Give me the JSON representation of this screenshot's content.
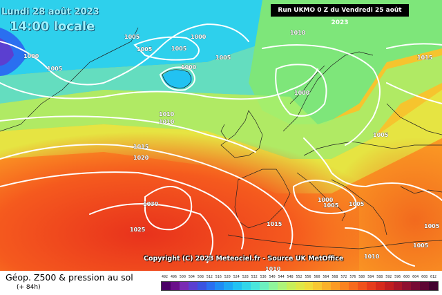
{
  "header": {
    "date": "Lundi 28 août 2023",
    "time": "14:00 locale",
    "run": "Run UKMO 0 Z du Vendredi 25 août 2023"
  },
  "copyright": "Copyright (C) 2023 Meteociel.fr - Source UK MetOffice",
  "legend": {
    "title": "Géop. Z500 & pression au sol",
    "subtitle": "(+ 84h)",
    "scale_labels": [
      "492",
      "496",
      "500",
      "504",
      "508",
      "512",
      "516",
      "520",
      "524",
      "528",
      "532",
      "536",
      "540",
      "544",
      "548",
      "552",
      "556",
      "560",
      "564",
      "568",
      "572",
      "576",
      "580",
      "584",
      "588",
      "592",
      "596",
      "600",
      "604",
      "608",
      "612"
    ],
    "scale_colors": [
      "#4b0066",
      "#6a0f8a",
      "#7a2bb3",
      "#5b3fd0",
      "#3a53e0",
      "#2a6ff0",
      "#1f8cf5",
      "#1ea8f5",
      "#22c2f2",
      "#32d6ea",
      "#4ae6dc",
      "#6cf0c0",
      "#8ff59c",
      "#aef37a",
      "#c8ee5a",
      "#dfe748",
      "#f0dc3c",
      "#f8c832",
      "#fbb12a",
      "#fc9a24",
      "#fb8320",
      "#f76a1e",
      "#f0521c",
      "#e63c1c",
      "#d62a1c",
      "#c01e20",
      "#a81628",
      "#8e1030",
      "#760a34",
      "#5e0634",
      "#420230"
    ]
  },
  "isobars": [
    {
      "value": "1000",
      "key": "a"
    },
    {
      "value": "1005",
      "key": "b"
    },
    {
      "value": "1005",
      "key": "c"
    },
    {
      "value": "1005",
      "key": "d"
    },
    {
      "value": "1005",
      "key": "e"
    },
    {
      "value": "1000",
      "key": "f"
    },
    {
      "value": "1005",
      "key": "g"
    },
    {
      "value": "1000",
      "key": "h"
    },
    {
      "value": "1010",
      "key": "i"
    },
    {
      "value": "1000",
      "key": "j"
    },
    {
      "value": "1015",
      "key": "k"
    },
    {
      "value": "1010",
      "key": "l"
    },
    {
      "value": "1010",
      "key": "m"
    },
    {
      "value": "1015",
      "key": "n"
    },
    {
      "value": "1020",
      "key": "o"
    },
    {
      "value": "1005",
      "key": "p"
    },
    {
      "value": "1030",
      "key": "q"
    },
    {
      "value": "1025",
      "key": "r"
    },
    {
      "value": "1000",
      "key": "s"
    },
    {
      "value": "1005",
      "key": "t"
    },
    {
      "value": "1005",
      "key": "u"
    },
    {
      "value": "1015",
      "key": "v"
    },
    {
      "value": "1005",
      "key": "w"
    },
    {
      "value": "1010",
      "key": "x"
    },
    {
      "value": "1010",
      "key": "y"
    },
    {
      "value": "1005",
      "key": "z"
    }
  ]
}
